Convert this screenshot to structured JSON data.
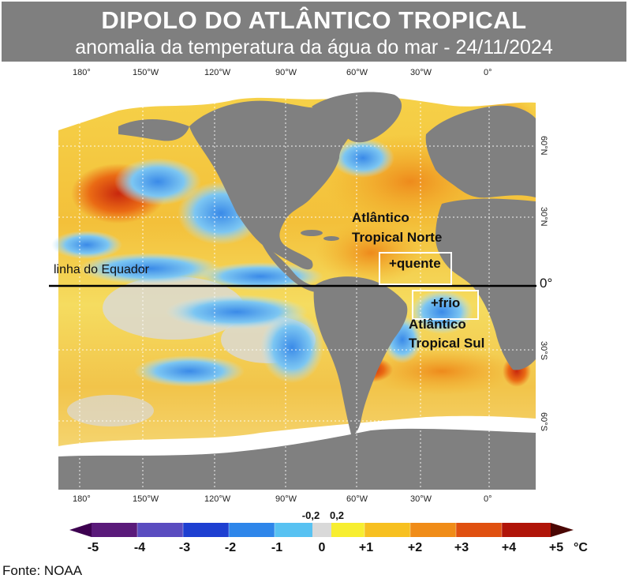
{
  "header": {
    "title": "DIPOLO DO ATLÂNTICO TROPICAL",
    "subtitle": "anomalia da temperatura da água do mar - 24/11/2024"
  },
  "map": {
    "longitude_labels": [
      "180°",
      "150°W",
      "120°W",
      "90°W",
      "60°W",
      "30°W",
      "0°"
    ],
    "latitude_labels": [
      "60°N",
      "30°N",
      "30°S",
      "60°S"
    ],
    "equator_label": "linha do Equador",
    "equator_degree": "0°",
    "north_region_line1": "Atlântico",
    "north_region_line2": "Tropical Norte",
    "north_anomaly": "+quente",
    "south_anomaly": "+frio",
    "south_region_line1": "Atlântico",
    "south_region_line2": "Tropical Sul"
  },
  "colorbar": {
    "ticks": [
      "-5",
      "-4",
      "-3",
      "-2",
      "-1",
      "0",
      "+1",
      "+2",
      "+3",
      "+4",
      "+5"
    ],
    "neutral_low": "-0,2",
    "neutral_high": "0,2",
    "unit": "°C",
    "colors": [
      "#4b0063",
      "#6b2a8e",
      "#5050c8",
      "#1e3fd1",
      "#2e7fe8",
      "#4cb4f0",
      "#bde8f6",
      "#d9d9d9",
      "#f7ee5c",
      "#f7c42a",
      "#f29b1e",
      "#ea6a14",
      "#d63a0e",
      "#a8140a",
      "#5e0a04"
    ]
  },
  "source": "Fonte: NOAA"
}
